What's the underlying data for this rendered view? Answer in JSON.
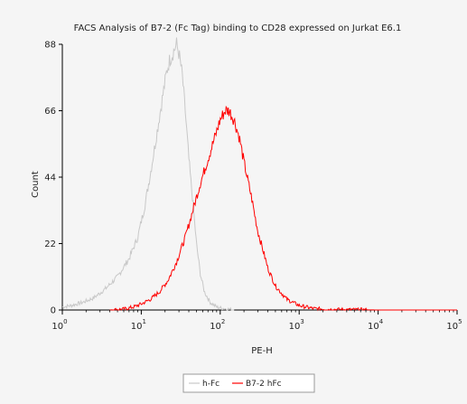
{
  "chart_data": {
    "type": "line",
    "title": "FACS Analysis of B7-2 (Fc Tag) binding to CD28 expressed on Jurkat E6.1",
    "xlabel": "PE-H",
    "ylabel": "Count",
    "x_scale": "log",
    "xlim": [
      1,
      100000
    ],
    "ylim": [
      0,
      88
    ],
    "x_ticks": [
      {
        "base": "10",
        "exp": "0"
      },
      {
        "base": "10",
        "exp": "1"
      },
      {
        "base": "10",
        "exp": "2"
      },
      {
        "base": "10",
        "exp": "3"
      },
      {
        "base": "10",
        "exp": "4"
      },
      {
        "base": "10",
        "exp": "5"
      }
    ],
    "y_ticks": [
      "0",
      "22",
      "44",
      "66",
      "88"
    ],
    "legend_position": "bottom-center",
    "grid": false,
    "series": [
      {
        "name": "h-Fc",
        "color": "#c8c8c8",
        "x": [
          1,
          1.3,
          1.8,
          2.5,
          3.5,
          5,
          7,
          9,
          11,
          13,
          15,
          17,
          19,
          21,
          23,
          25,
          27,
          28,
          30,
          33,
          36,
          40,
          45,
          50,
          56,
          63,
          75,
          90,
          110,
          150
        ],
        "y": [
          1,
          1.5,
          2.5,
          4,
          7,
          11,
          17,
          24,
          34,
          45,
          55,
          64,
          72,
          79,
          83,
          85,
          87,
          88,
          85,
          78,
          66,
          50,
          36,
          22,
          12,
          6,
          2.5,
          1,
          0.5,
          0
        ]
      },
      {
        "name": "B7-2 hFc",
        "color": "#ff0000",
        "x": [
          4,
          6,
          8,
          10,
          13,
          17,
          22,
          28,
          36,
          45,
          56,
          70,
          85,
          100,
          115,
          130,
          150,
          175,
          200,
          250,
          300,
          400,
          500,
          700,
          1000,
          1500,
          2500,
          5000,
          10000,
          30000,
          100000
        ],
        "y": [
          0,
          0.3,
          1,
          2,
          3.5,
          6,
          10,
          16,
          24,
          33,
          42,
          50,
          57,
          63,
          66,
          66,
          63,
          57,
          49,
          37,
          26,
          14,
          8,
          3.5,
          1.5,
          0.5,
          0.2,
          0.1,
          0,
          0,
          0
        ]
      }
    ]
  }
}
